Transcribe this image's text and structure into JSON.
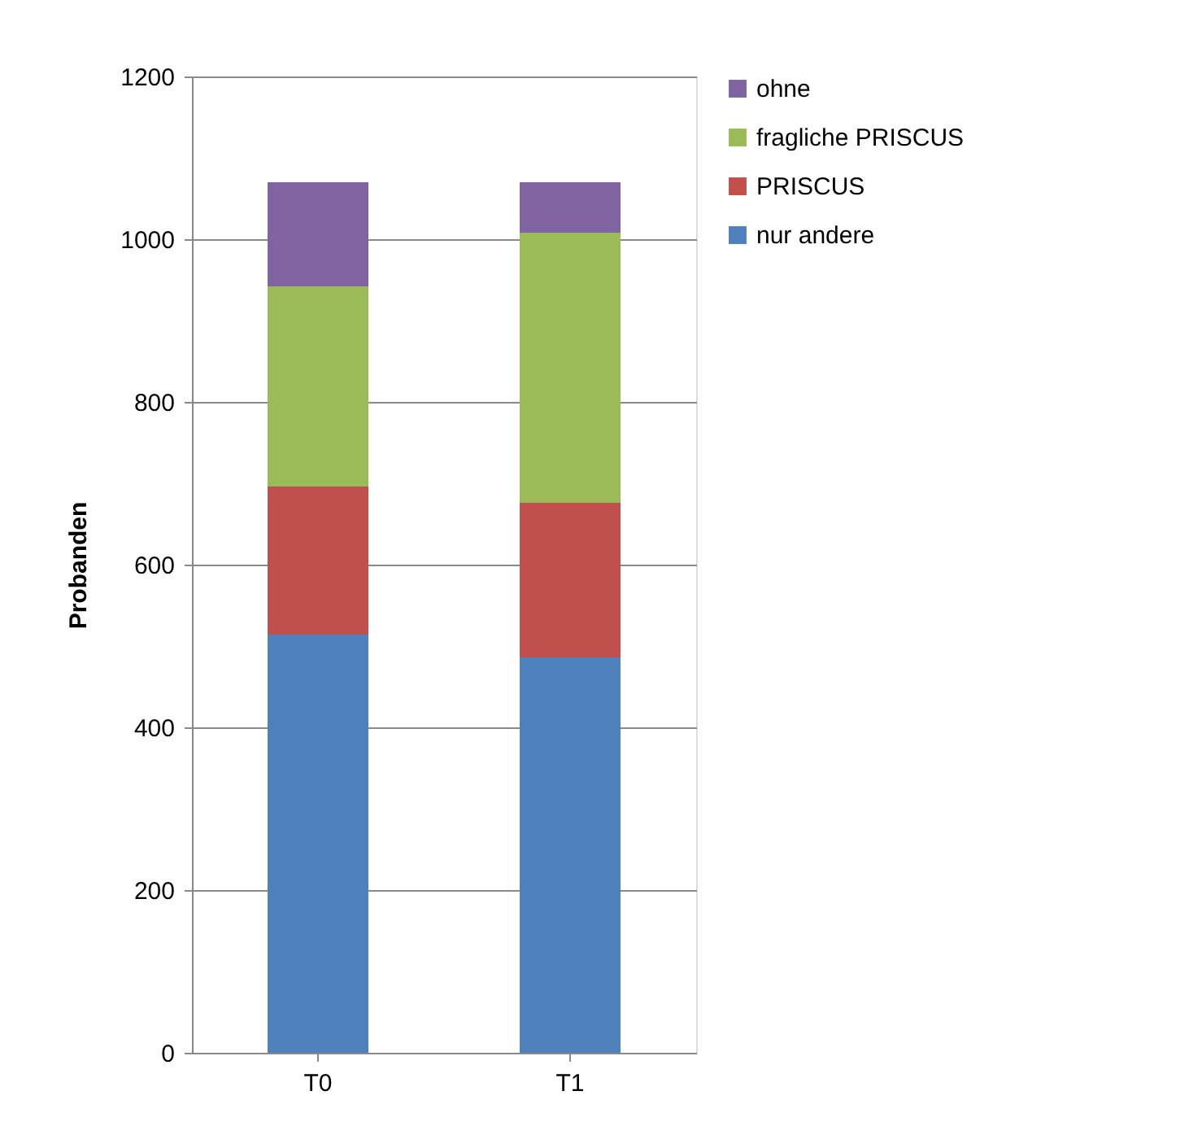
{
  "chart_data": {
    "type": "bar",
    "ylabel": "Probanden",
    "categories": [
      "T0",
      "T1"
    ],
    "stacked": true,
    "series": [
      {
        "name": "nur andere",
        "color": "#4f81bd",
        "values": [
          514,
          486
        ]
      },
      {
        "name": "PRISCUS",
        "color": "#c0504d",
        "values": [
          182,
          190
        ]
      },
      {
        "name": "fragliche PRISCUS",
        "color": "#9bbb59",
        "values": [
          246,
          332
        ]
      },
      {
        "name": "ohne",
        "color": "#8064a2",
        "values": [
          128,
          62
        ]
      }
    ],
    "ylim": [
      0,
      1200
    ],
    "yticks": [
      0,
      200,
      400,
      600,
      800,
      1000,
      1200
    ],
    "grid": "y",
    "legend": "right"
  }
}
